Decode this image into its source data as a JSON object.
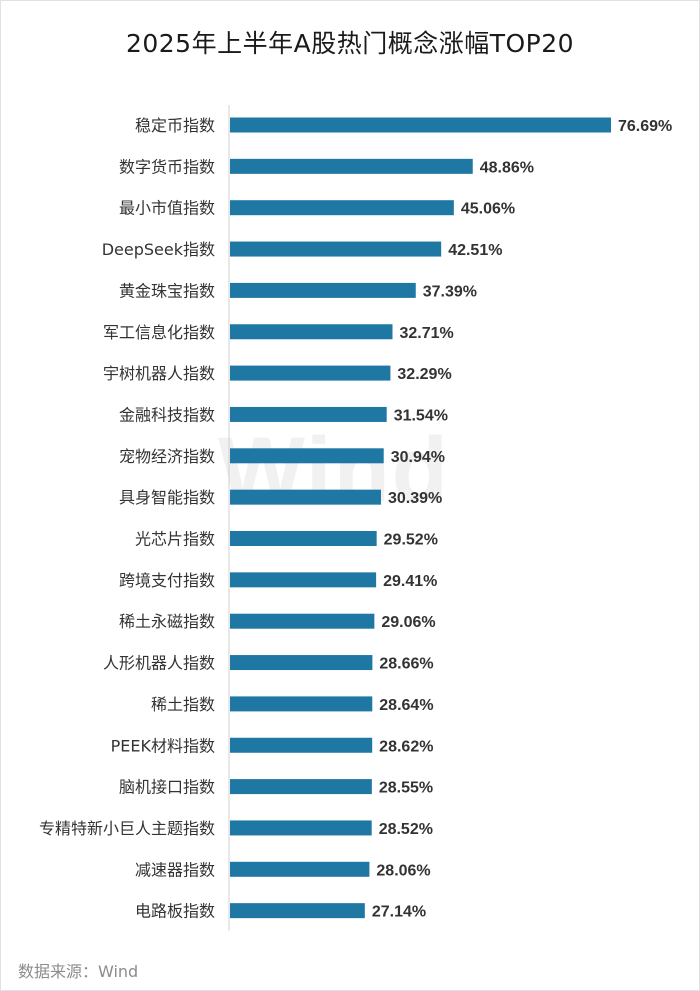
{
  "chart_data": {
    "type": "bar",
    "orientation": "horizontal",
    "title": "2025年上半年A股热门概念涨幅TOP20",
    "categories": [
      "稳定币指数",
      "数字货币指数",
      "最小市值指数",
      "DeepSeek指数",
      "黄金珠宝指数",
      "军工信息化指数",
      "宇树机器人指数",
      "金融科技指数",
      "宠物经济指数",
      "具身智能指数",
      "光芯片指数",
      "跨境支付指数",
      "稀土永磁指数",
      "人形机器人指数",
      "稀土指数",
      "PEEK材料指数",
      "脑机接口指数",
      "专精特新小巨人主题指数",
      "减速器指数",
      "电路板指数"
    ],
    "values": [
      76.69,
      48.86,
      45.06,
      42.51,
      37.39,
      32.71,
      32.29,
      31.54,
      30.94,
      30.39,
      29.52,
      29.41,
      29.06,
      28.66,
      28.64,
      28.62,
      28.55,
      28.52,
      28.06,
      27.14
    ],
    "labels": [
      "76.69%",
      "48.86%",
      "45.06%",
      "42.51%",
      "37.39%",
      "32.71%",
      "32.29%",
      "31.54%",
      "30.94%",
      "30.39%",
      "29.52%",
      "29.41%",
      "29.06%",
      "28.66%",
      "28.64%",
      "28.62%",
      "28.55%",
      "28.52%",
      "28.06%",
      "27.14%"
    ],
    "unit": "%",
    "xlim": [
      0,
      76.69
    ],
    "grid": false,
    "legend": "none",
    "bar_color": "#1f77a4"
  },
  "watermark": "Wind",
  "source_note": "数据来源：Wind"
}
